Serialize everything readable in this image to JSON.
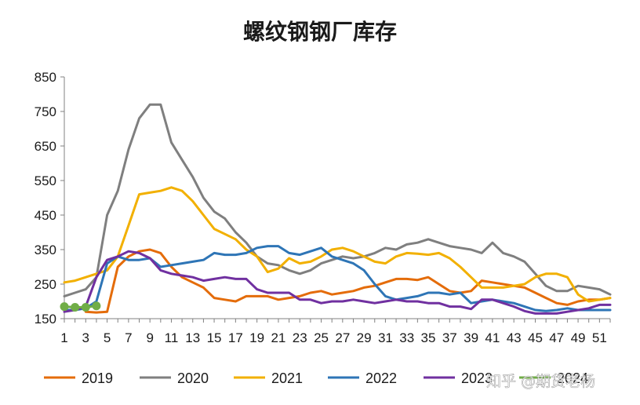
{
  "chart_data": {
    "type": "line",
    "title": "螺纹钢钢厂库存",
    "xlabel": "",
    "ylabel": "",
    "ylim": [
      150,
      850
    ],
    "yticks": [
      150,
      250,
      350,
      450,
      550,
      650,
      750,
      850
    ],
    "xticks": [
      1,
      3,
      5,
      7,
      9,
      11,
      13,
      15,
      17,
      19,
      21,
      23,
      25,
      27,
      29,
      31,
      33,
      35,
      37,
      39,
      41,
      43,
      45,
      47,
      49,
      51
    ],
    "xlim": [
      1,
      52
    ],
    "grid": false,
    "legend_position": "bottom",
    "series": [
      {
        "name": "2019",
        "color": "#E46C0A",
        "x": [
          3,
          4,
          5,
          6,
          7,
          8,
          9,
          10,
          11,
          12,
          13,
          14,
          15,
          16,
          17,
          18,
          19,
          20,
          21,
          22,
          23,
          24,
          25,
          26,
          27,
          28,
          29,
          30,
          31,
          32,
          33,
          34,
          35,
          36,
          37,
          38,
          39,
          40,
          41,
          42,
          43,
          44,
          45,
          46,
          47,
          48,
          49,
          50,
          51,
          52
        ],
        "y": [
          170,
          168,
          170,
          300,
          330,
          345,
          350,
          340,
          300,
          270,
          255,
          240,
          210,
          205,
          200,
          215,
          215,
          215,
          205,
          210,
          215,
          225,
          230,
          220,
          225,
          230,
          240,
          245,
          255,
          265,
          265,
          262,
          270,
          250,
          230,
          225,
          230,
          260,
          255,
          250,
          245,
          240,
          225,
          210,
          195,
          190,
          200,
          205,
          205,
          210
        ]
      },
      {
        "name": "2020",
        "color": "#7F7F7F",
        "x": [
          1,
          2,
          3,
          4,
          5,
          6,
          7,
          8,
          9,
          10,
          11,
          12,
          13,
          14,
          15,
          16,
          17,
          18,
          19,
          20,
          21,
          22,
          23,
          24,
          25,
          26,
          27,
          28,
          29,
          30,
          31,
          32,
          33,
          34,
          35,
          36,
          37,
          38,
          39,
          40,
          41,
          42,
          43,
          44,
          45,
          46,
          47,
          48,
          49,
          50,
          51,
          52
        ],
        "y": [
          215,
          225,
          235,
          270,
          450,
          520,
          640,
          730,
          770,
          770,
          660,
          610,
          560,
          500,
          460,
          440,
          400,
          370,
          330,
          310,
          305,
          290,
          280,
          290,
          310,
          320,
          330,
          325,
          330,
          340,
          355,
          350,
          365,
          370,
          380,
          370,
          360,
          355,
          350,
          340,
          370,
          340,
          330,
          315,
          280,
          245,
          230,
          230,
          245,
          240,
          235,
          220
        ]
      },
      {
        "name": "2021",
        "color": "#F2B000",
        "x": [
          1,
          2,
          3,
          4,
          5,
          6,
          7,
          8,
          9,
          10,
          11,
          12,
          13,
          14,
          15,
          16,
          17,
          18,
          19,
          20,
          21,
          22,
          23,
          24,
          25,
          26,
          27,
          28,
          29,
          30,
          31,
          32,
          33,
          34,
          35,
          36,
          37,
          38,
          39,
          40,
          41,
          42,
          43,
          44,
          45,
          46,
          47,
          48,
          49,
          50,
          51,
          52
        ],
        "y": [
          255,
          260,
          270,
          280,
          290,
          330,
          420,
          510,
          515,
          520,
          530,
          520,
          490,
          450,
          410,
          395,
          380,
          350,
          330,
          285,
          295,
          325,
          310,
          315,
          330,
          350,
          355,
          345,
          330,
          315,
          310,
          330,
          340,
          338,
          335,
          340,
          325,
          300,
          270,
          240,
          240,
          240,
          245,
          250,
          270,
          280,
          280,
          270,
          220,
          200,
          205,
          210
        ]
      },
      {
        "name": "2022",
        "color": "#2E75B6",
        "x": [
          1,
          2,
          3,
          4,
          5,
          6,
          7,
          8,
          9,
          10,
          11,
          12,
          13,
          14,
          15,
          16,
          17,
          18,
          19,
          20,
          21,
          22,
          23,
          24,
          25,
          26,
          27,
          28,
          29,
          30,
          31,
          32,
          33,
          34,
          35,
          36,
          37,
          38,
          39,
          40,
          41,
          42,
          43,
          44,
          45,
          46,
          47,
          48,
          49,
          50,
          51,
          52
        ],
        "y": [
          175,
          175,
          180,
          200,
          310,
          330,
          320,
          320,
          325,
          300,
          305,
          310,
          315,
          320,
          340,
          335,
          335,
          340,
          355,
          360,
          360,
          340,
          335,
          345,
          355,
          330,
          320,
          310,
          290,
          250,
          215,
          205,
          210,
          215,
          225,
          225,
          220,
          225,
          195,
          200,
          205,
          200,
          195,
          185,
          175,
          172,
          175,
          180,
          175,
          175,
          175,
          175
        ]
      },
      {
        "name": "2023",
        "color": "#7030A0",
        "x": [
          1,
          2,
          3,
          4,
          5,
          6,
          7,
          8,
          9,
          10,
          11,
          12,
          13,
          14,
          15,
          16,
          17,
          18,
          19,
          20,
          21,
          22,
          23,
          24,
          25,
          26,
          27,
          28,
          29,
          30,
          31,
          32,
          33,
          34,
          35,
          36,
          37,
          38,
          39,
          40,
          41,
          42,
          43,
          44,
          45,
          46,
          47,
          48,
          49,
          50,
          51,
          52
        ],
        "y": [
          170,
          175,
          185,
          270,
          320,
          330,
          345,
          340,
          325,
          290,
          280,
          275,
          270,
          260,
          265,
          270,
          265,
          265,
          235,
          225,
          225,
          225,
          205,
          205,
          195,
          200,
          200,
          205,
          200,
          195,
          200,
          205,
          200,
          200,
          195,
          195,
          185,
          185,
          178,
          205,
          205,
          195,
          185,
          172,
          165,
          165,
          165,
          170,
          175,
          180,
          190,
          190
        ]
      },
      {
        "name": "",
        "color": "#70AD47",
        "marker": "circle",
        "x": [
          1,
          2,
          3,
          4
        ],
        "y": [
          185,
          183,
          183,
          187
        ]
      }
    ],
    "legend": [
      {
        "label": "2019",
        "color": "#E46C0A"
      },
      {
        "label": "2020",
        "color": "#7F7F7F"
      },
      {
        "label": "2021",
        "color": "#F2B000"
      },
      {
        "label": "2022",
        "color": "#2E75B6"
      },
      {
        "label": "2023",
        "color": "#7030A0"
      },
      {
        "label": "2024",
        "color": "#70AD47"
      }
    ]
  },
  "watermark": "知乎 @期货老杨"
}
